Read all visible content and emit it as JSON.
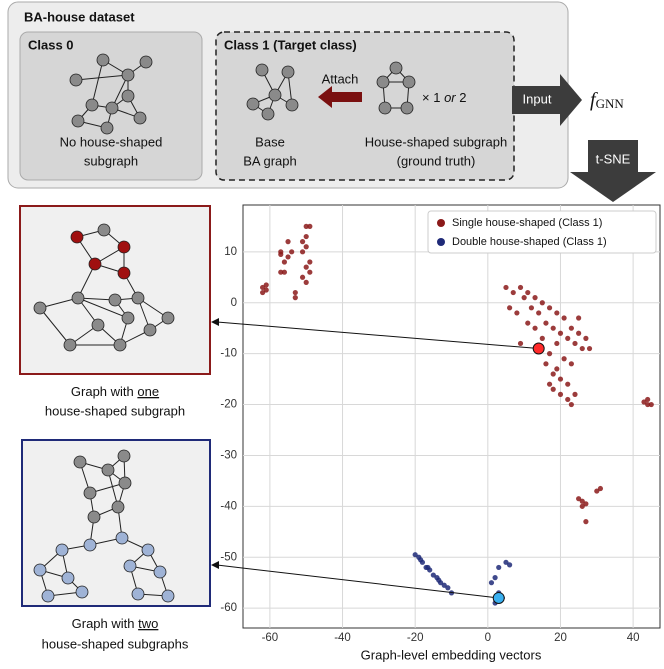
{
  "chart_data": {
    "type": "scatter",
    "xlabel": "Graph-level embedding vectors",
    "xlim": [
      -67.4,
      47.4
    ],
    "ylim": [
      -63.9,
      19.2
    ],
    "xticks": [
      -60,
      -40,
      -20,
      0,
      20,
      40
    ],
    "yticks": [
      10,
      0,
      -10,
      -20,
      -30,
      -40,
      -50,
      -60
    ],
    "grid": true,
    "legend": "upper-right",
    "series": [
      {
        "name": "Single house-shaped (Class 1)",
        "color": "#8b1a1a",
        "x": [
          -62,
          -61,
          -62,
          -61,
          -57,
          -56,
          -55,
          -57,
          -54,
          -56,
          -53,
          -53,
          -50,
          -49,
          -50,
          -51,
          -50,
          -51,
          -49,
          -50,
          -49,
          -51,
          -50,
          -57,
          -55,
          5,
          7,
          9,
          11,
          13,
          15,
          17,
          19,
          21,
          10,
          12,
          14,
          16,
          18,
          20,
          22,
          24,
          26,
          23,
          25,
          19,
          17,
          16,
          18,
          20,
          22,
          24,
          23,
          21,
          19,
          17,
          22,
          23,
          25,
          27,
          28,
          6,
          8,
          13,
          15,
          11,
          9,
          20,
          18,
          44,
          44,
          43,
          45,
          26,
          27,
          26,
          25,
          30,
          31,
          27
        ],
        "values": [
          3,
          2.5,
          2,
          3.5,
          6,
          8,
          9,
          9.5,
          10,
          6,
          1,
          2,
          15,
          15,
          13,
          12,
          11,
          10,
          8,
          7,
          6,
          5,
          4,
          10,
          12,
          3,
          2,
          3,
          2,
          1,
          0,
          -1,
          -2,
          -3,
          1,
          -1,
          -2,
          -4,
          -5,
          -6,
          -7,
          -8,
          -9,
          -5,
          -6,
          -8,
          -10,
          -12,
          -14,
          -15,
          -16,
          -18,
          -12,
          -11,
          -13,
          -16,
          -19,
          -20,
          -3,
          -7,
          -9,
          -1,
          -2,
          -5,
          -7,
          -4,
          -8,
          -18,
          -17,
          -19,
          -20,
          -19.5,
          -20,
          -39,
          -39.5,
          -40,
          -38.5,
          -37,
          -36.5,
          -43
        ],
        "highlight": {
          "x": 14,
          "y": -9,
          "color": "#ff2a2a"
        }
      },
      {
        "name": "Double house-shaped (Class 1)",
        "color": "#1f2a78",
        "x": [
          -20,
          -19,
          -18,
          -17,
          -16,
          -15,
          -14,
          -13,
          -12,
          -11,
          -10,
          -18.5,
          -16.5,
          -13.5,
          3,
          5,
          6,
          2,
          3,
          4,
          2,
          1
        ],
        "values": [
          -49.5,
          -50,
          -51,
          -52,
          -52.5,
          -53.5,
          -54,
          -55,
          -55.5,
          -56,
          -57,
          -50.5,
          -52,
          -54.5,
          -52,
          -51,
          -51.5,
          -54,
          -57,
          -58,
          -59,
          -55
        ],
        "highlight": {
          "x": 3,
          "y": -58,
          "color": "#3ab0f0"
        }
      }
    ]
  },
  "header": {
    "title": "BA-house dataset"
  },
  "class0": {
    "title": "Class 0",
    "caption": [
      "No house-shaped",
      "subgraph"
    ]
  },
  "class1": {
    "title": "Class 1 (Target class)",
    "attach": "Attach",
    "base": [
      "Base",
      "BA graph"
    ],
    "house": [
      "House-shaped subgraph",
      "(ground truth)"
    ],
    "times": "× 1",
    "or": "or",
    "count": "2"
  },
  "model": {
    "input": "Input",
    "f": "f",
    "sub": "GNN",
    "tsne": "t-SNE"
  },
  "panels": {
    "one": {
      "pre": "Graph with ",
      "key": "one",
      "post": "house-shaped subgraph"
    },
    "two": {
      "pre": "Graph with ",
      "key": "two",
      "post": "house-shaped subgraphs"
    }
  }
}
